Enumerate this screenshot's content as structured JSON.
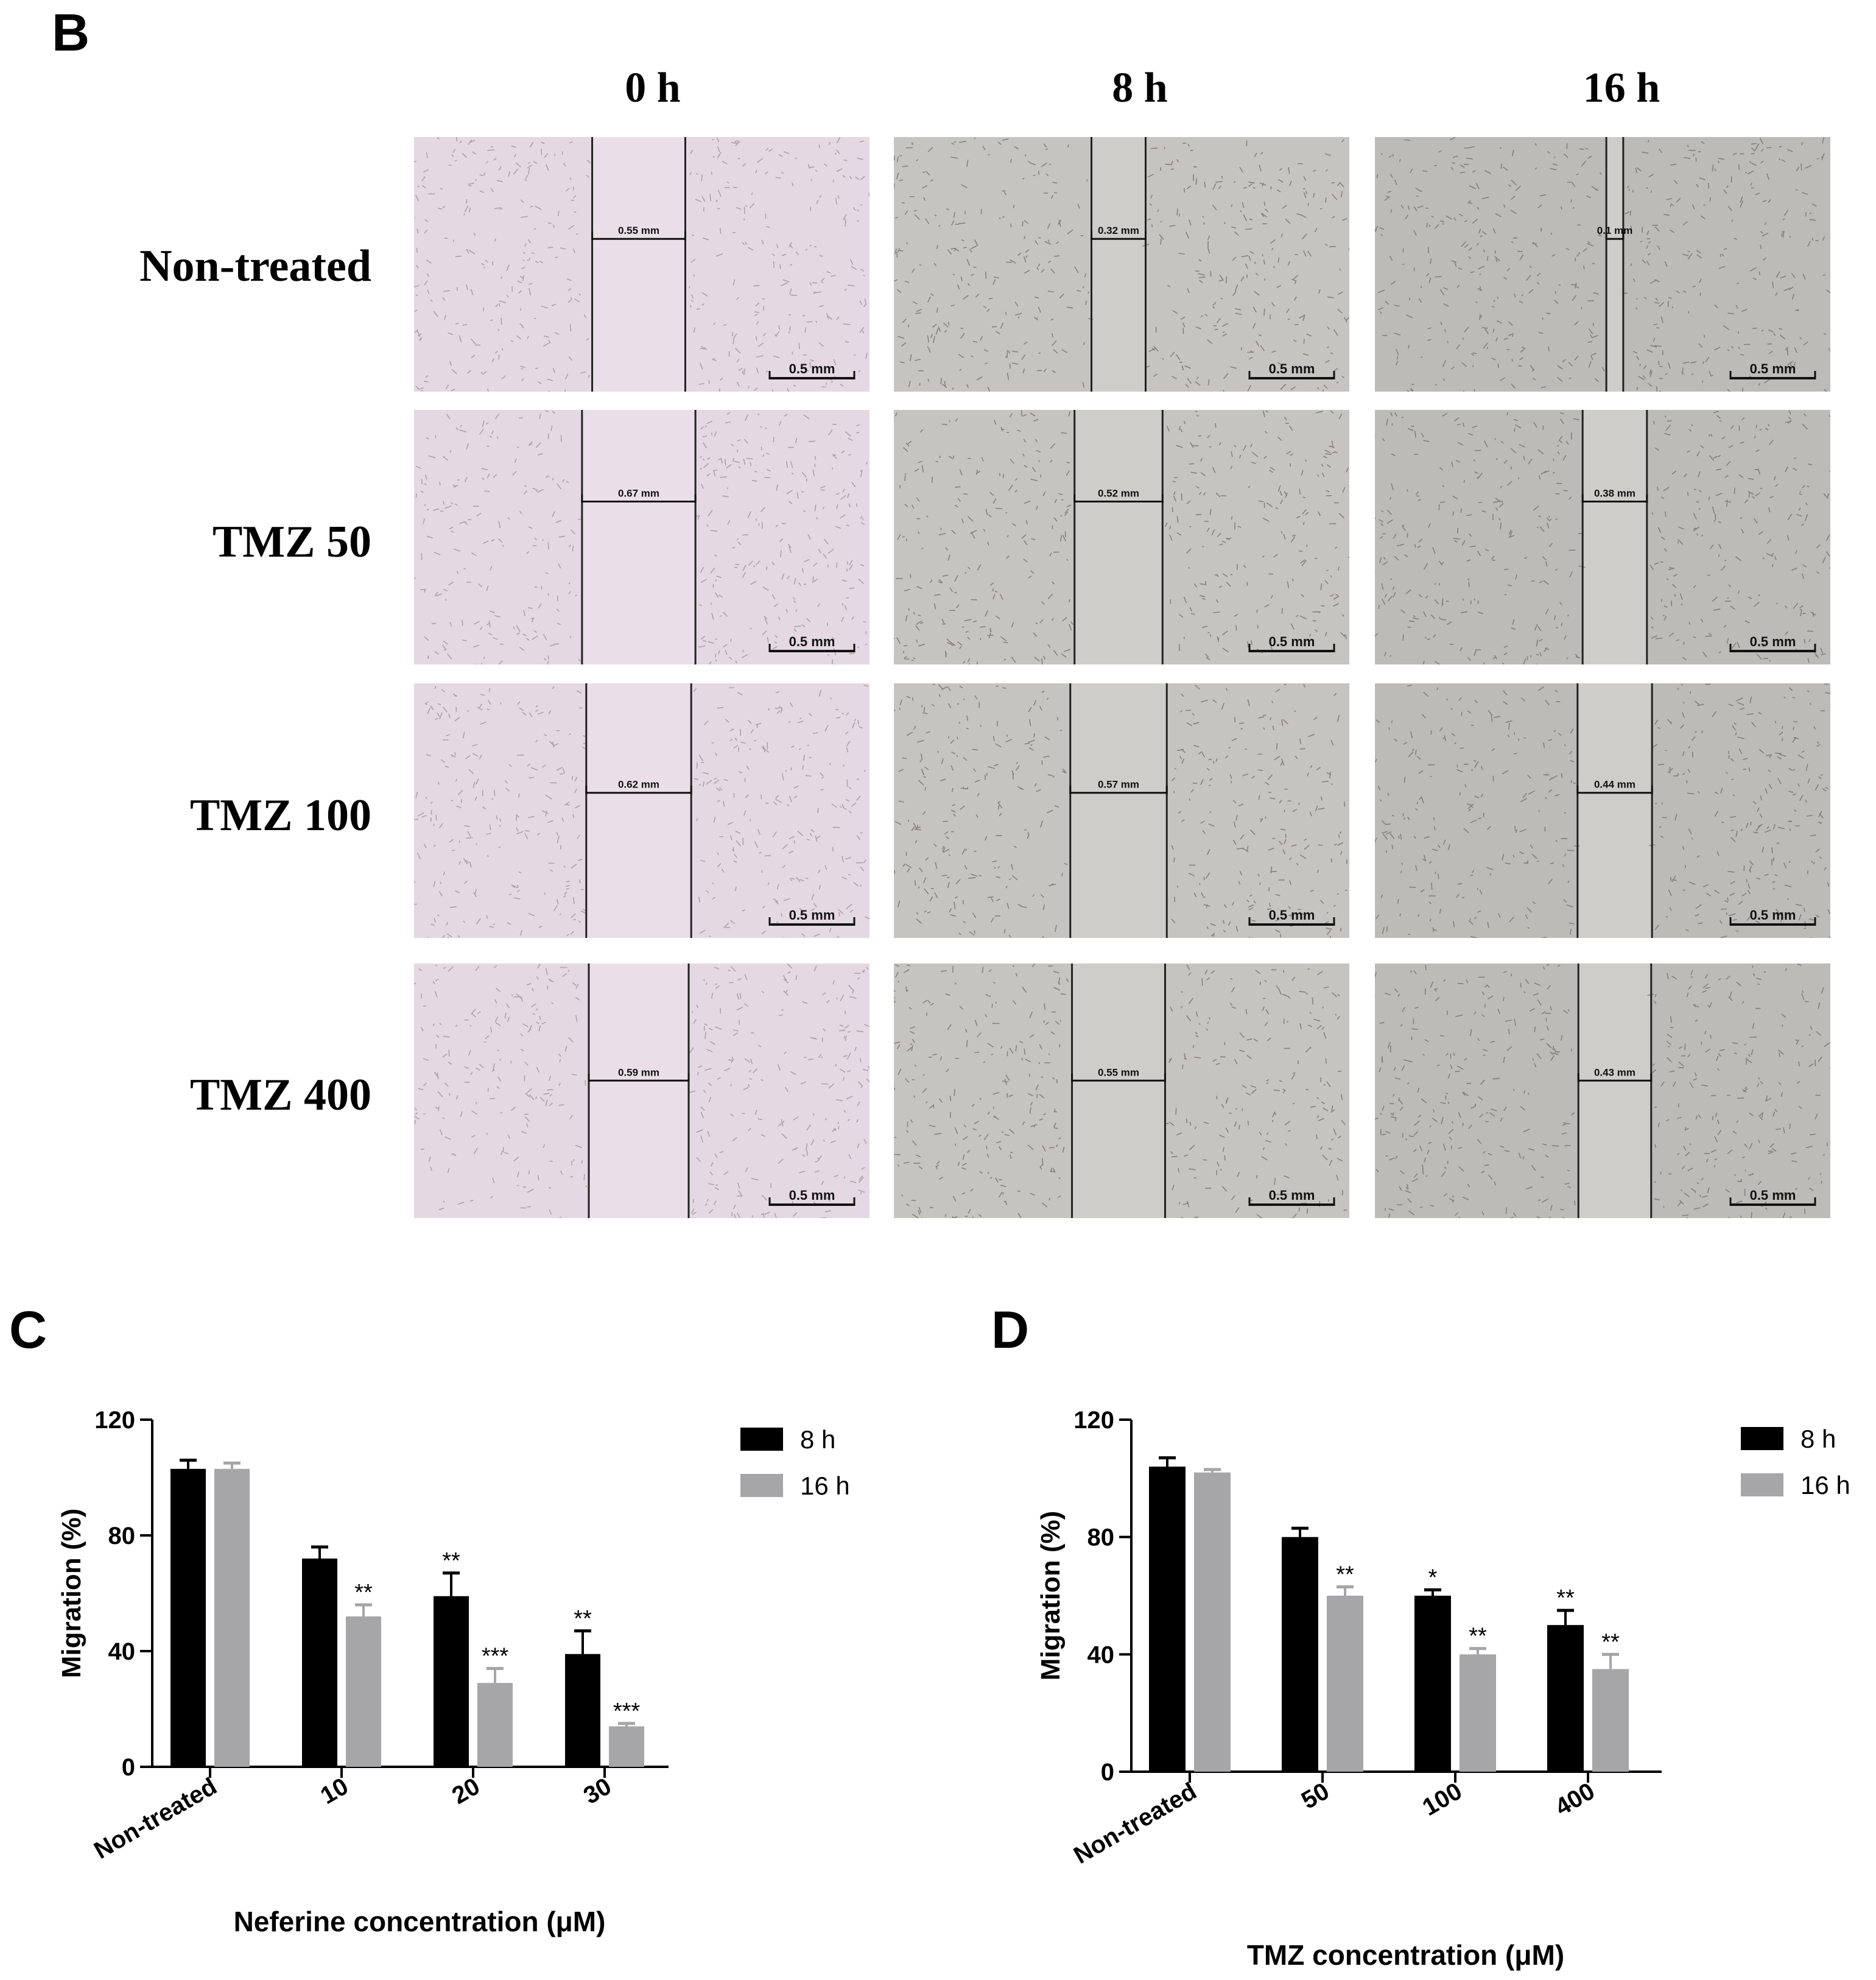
{
  "panel_b": {
    "letter": "B",
    "columns": [
      "0 h",
      "8 h",
      "16 h"
    ],
    "rows": [
      {
        "label": "Non-treated",
        "measurements": [
          "0.55 mm",
          "0.32 mm",
          "0.1 mm"
        ],
        "gap_mm": [
          0.55,
          0.32,
          0.1
        ]
      },
      {
        "label": "TMZ 50",
        "measurements": [
          "0.67 mm",
          "0.52 mm",
          "0.38 mm"
        ],
        "gap_mm": [
          0.67,
          0.52,
          0.38
        ]
      },
      {
        "label": "TMZ 100",
        "measurements": [
          "0.62 mm",
          "0.57 mm",
          "0.44 mm"
        ],
        "gap_mm": [
          0.62,
          0.57,
          0.44
        ]
      },
      {
        "label": "TMZ 400",
        "measurements": [
          "0.59 mm",
          "0.55 mm",
          "0.43 mm"
        ],
        "gap_mm": [
          0.59,
          0.55,
          0.43
        ]
      }
    ],
    "scale_bar_label": "0.5 mm",
    "colors": {
      "col0_bg": "#e4d8e2",
      "col1_bg": "#c6c4c1",
      "col2_bg": "#bdbbb8"
    }
  },
  "chart_data": [
    {
      "panel": "C",
      "type": "bar",
      "categories": [
        "Non-treated",
        "10",
        "20",
        "30"
      ],
      "xlabel": "Neferine concentration (μM)",
      "ylabel": "Migration (%)",
      "ylim": [
        0,
        120
      ],
      "yticks": [
        "0",
        "40",
        "80",
        "120"
      ],
      "legend_position": "top-right",
      "series": [
        {
          "name": "8 h",
          "color": "#000000",
          "values": [
            103,
            72,
            59,
            39
          ],
          "errors": [
            3,
            4,
            8,
            8
          ],
          "significance": [
            "",
            "",
            "**",
            "**"
          ]
        },
        {
          "name": "16 h",
          "color": "#a6a6a8",
          "values": [
            103,
            52,
            29,
            14
          ],
          "errors": [
            2,
            4,
            5,
            1
          ],
          "significance": [
            "",
            "**",
            "***",
            "***"
          ]
        }
      ]
    },
    {
      "panel": "D",
      "type": "bar",
      "categories": [
        "Non-treated",
        "50",
        "100",
        "400"
      ],
      "xlabel": "TMZ concentration (μM)",
      "ylabel": "Migration (%)",
      "ylim": [
        0,
        120
      ],
      "yticks": [
        "0",
        "40",
        "80",
        "120"
      ],
      "legend_position": "top-right",
      "series": [
        {
          "name": "8 h",
          "color": "#000000",
          "values": [
            104,
            80,
            60,
            50
          ],
          "errors": [
            3,
            3,
            2,
            5
          ],
          "significance": [
            "",
            "",
            "*",
            "**"
          ]
        },
        {
          "name": "16 h",
          "color": "#a6a6a8",
          "values": [
            102,
            60,
            40,
            35
          ],
          "errors": [
            1,
            3,
            2,
            5
          ],
          "significance": [
            "",
            "**",
            "**",
            "**"
          ]
        }
      ]
    }
  ]
}
